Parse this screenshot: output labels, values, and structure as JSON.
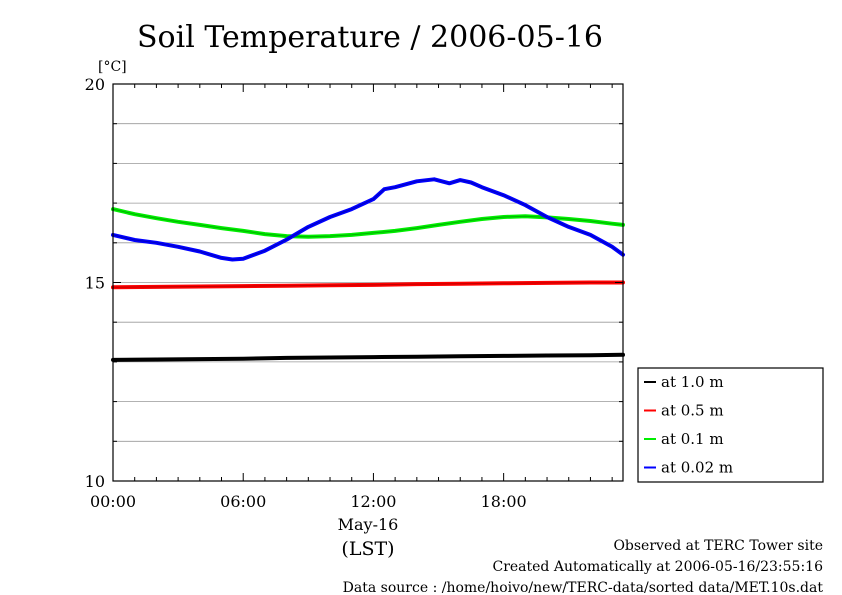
{
  "chart_data": {
    "type": "line",
    "title": "Soil Temperature / 2006-05-16",
    "ylabel": "[°C]",
    "ylim": [
      10,
      20
    ],
    "yticks": [
      {
        "value": 10,
        "label": "10"
      },
      {
        "value": 15,
        "label": "15"
      },
      {
        "value": 20,
        "label": "20"
      }
    ],
    "y_minor_grid": [
      11,
      12,
      13,
      14,
      16,
      17,
      18,
      19
    ],
    "xlim": [
      0,
      23.5
    ],
    "xticks": [
      {
        "value": 0,
        "label": "00:00"
      },
      {
        "value": 6,
        "label": "06:00"
      },
      {
        "value": 12,
        "label": "12:00"
      },
      {
        "value": 18,
        "label": "18:00"
      }
    ],
    "x_date_label": "May-16",
    "x_unit_label": "(LST)",
    "grid": true,
    "legend_placement": "right",
    "series": [
      {
        "name": "at 1.0 m",
        "color": "#000000",
        "x": [
          0,
          2,
          4,
          6,
          8,
          10,
          12,
          14,
          16,
          18,
          20,
          22,
          23.5
        ],
        "y": [
          13.05,
          13.06,
          13.07,
          13.08,
          13.1,
          13.11,
          13.12,
          13.13,
          13.14,
          13.15,
          13.16,
          13.17,
          13.18
        ]
      },
      {
        "name": "at 0.5 m",
        "color": "#ff0000",
        "x": [
          0,
          2,
          4,
          6,
          8,
          10,
          12,
          14,
          16,
          18,
          20,
          22,
          23.5
        ],
        "y": [
          14.88,
          14.89,
          14.9,
          14.91,
          14.92,
          14.93,
          14.94,
          14.96,
          14.97,
          14.98,
          14.99,
          15.0,
          15.0
        ]
      },
      {
        "name": "at 0.1 m",
        "color": "#00ee00",
        "x": [
          0,
          1,
          2,
          3,
          4,
          5,
          6,
          7,
          8,
          9,
          10,
          11,
          12,
          13,
          14,
          15,
          16,
          17,
          18,
          19,
          20,
          21,
          22,
          23,
          23.5
        ],
        "y": [
          16.85,
          16.72,
          16.62,
          16.53,
          16.45,
          16.37,
          16.3,
          16.22,
          16.17,
          16.15,
          16.17,
          16.2,
          16.25,
          16.3,
          16.37,
          16.45,
          16.53,
          16.6,
          16.65,
          16.67,
          16.64,
          16.6,
          16.55,
          16.48,
          16.45
        ]
      },
      {
        "name": "at 0.02 m",
        "color": "#0000ff",
        "x": [
          0,
          1,
          2,
          3,
          4,
          5,
          5.5,
          6,
          7,
          8,
          9,
          10,
          11,
          12,
          12.5,
          13,
          14,
          14.8,
          15.5,
          16,
          16.5,
          17,
          18,
          19,
          20,
          21,
          22,
          23,
          23.5
        ],
        "y": [
          16.2,
          16.07,
          16.0,
          15.9,
          15.78,
          15.62,
          15.58,
          15.6,
          15.8,
          16.08,
          16.4,
          16.65,
          16.85,
          17.1,
          17.35,
          17.4,
          17.55,
          17.6,
          17.5,
          17.58,
          17.52,
          17.4,
          17.2,
          16.95,
          16.65,
          16.4,
          16.2,
          15.9,
          15.7
        ]
      }
    ]
  },
  "footer": {
    "line1": "Observed at TERC Tower site",
    "line2": "Created Automatically at 2006-05-16/23:55:16",
    "line3": "Data source : /home/hoivo/new/TERC-data/sorted  data/MET.10s.dat"
  }
}
